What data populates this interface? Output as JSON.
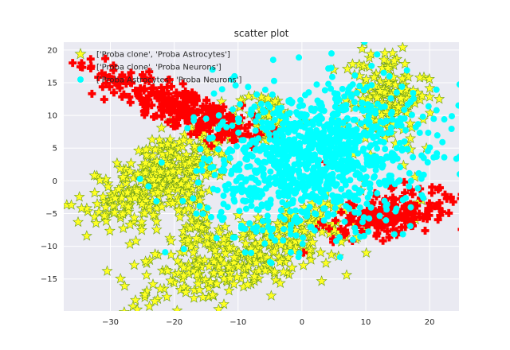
{
  "chart_data": {
    "type": "scatter",
    "title": "scatter plot",
    "xlabel": "",
    "ylabel": "",
    "xlim": [
      -37.3,
      24.6
    ],
    "ylim": [
      -19.9,
      21.2
    ],
    "xticks": [
      -30,
      -20,
      -10,
      0,
      10,
      20
    ],
    "yticks": [
      -15,
      -10,
      -5,
      0,
      5,
      10,
      15,
      20
    ],
    "grid": true,
    "background": "#eaeaf2",
    "legend_position": "upper-left",
    "series": [
      {
        "name": "['Proba clone', 'Proba Astrocytes']",
        "marker": "star",
        "color": "#ffff22",
        "edgecolor": "#6a9c1a",
        "clusters": [
          {
            "cx": -22,
            "cy": 0.5,
            "sx": 6.5,
            "sy": 3.2,
            "rot": 28,
            "n": 360
          },
          {
            "cx": -7,
            "cy": -11,
            "sx": 10,
            "sy": 2.8,
            "rot": 18,
            "n": 380
          },
          {
            "cx": 13,
            "cy": 13,
            "sx": 3.5,
            "sy": 4.5,
            "rot": 0,
            "n": 180
          },
          {
            "cx": -6,
            "cy": 9.5,
            "sx": 3.2,
            "sy": 2.2,
            "rot": 0,
            "n": 70
          },
          {
            "cx": -17,
            "cy": -7,
            "sx": 1.8,
            "sy": 3.5,
            "rot": 0,
            "n": 60
          }
        ],
        "outliers": [
          {
            "x": -30.5,
            "y": -13.8
          },
          {
            "x": -34.5,
            "y": -4.2
          },
          {
            "x": -32.5,
            "y": 0.8
          },
          {
            "x": -26,
            "y": -9.2
          },
          {
            "x": -24.5,
            "y": -12.3
          },
          {
            "x": -23,
            "y": -11.2
          },
          {
            "x": -20.5,
            "y": -11.3
          },
          {
            "x": -20.5,
            "y": -9.2
          },
          {
            "x": -18.5,
            "y": -14.5
          },
          {
            "x": -15.5,
            "y": -17.8
          },
          {
            "x": 21.5,
            "y": 12.5
          },
          {
            "x": 19.5,
            "y": 5
          }
        ]
      },
      {
        "name": "['Proba clone', 'Proba Neurons']",
        "marker": "plus",
        "color": "#ff0000",
        "clusters": [
          {
            "cx": -18,
            "cy": 11,
            "sx": 8,
            "sy": 1.6,
            "rot": -22,
            "n": 280
          },
          {
            "cx": 14,
            "cy": -5,
            "sx": 5.5,
            "sy": 1.8,
            "rot": 12,
            "n": 200
          }
        ],
        "outliers": [
          {
            "x": -34.5,
            "y": 18
          },
          {
            "x": -33,
            "y": 17.5
          }
        ]
      },
      {
        "name": "['Proba Astrocytes', 'Proba Neurons']",
        "marker": "circle",
        "color": "#00ffff",
        "clusters": [
          {
            "cx": 2,
            "cy": 3.5,
            "sx": 9.5,
            "sy": 6,
            "rot": 12,
            "n": 1100
          }
        ],
        "outliers": [
          {
            "x": -4.5,
            "y": 18.5
          },
          {
            "x": -14,
            "y": 17
          },
          {
            "x": -11,
            "y": 15.5
          },
          {
            "x": -12.5,
            "y": 14
          },
          {
            "x": -15,
            "y": 9.5
          },
          {
            "x": -13,
            "y": 10
          },
          {
            "x": -10,
            "y": 9.5
          }
        ]
      }
    ]
  }
}
